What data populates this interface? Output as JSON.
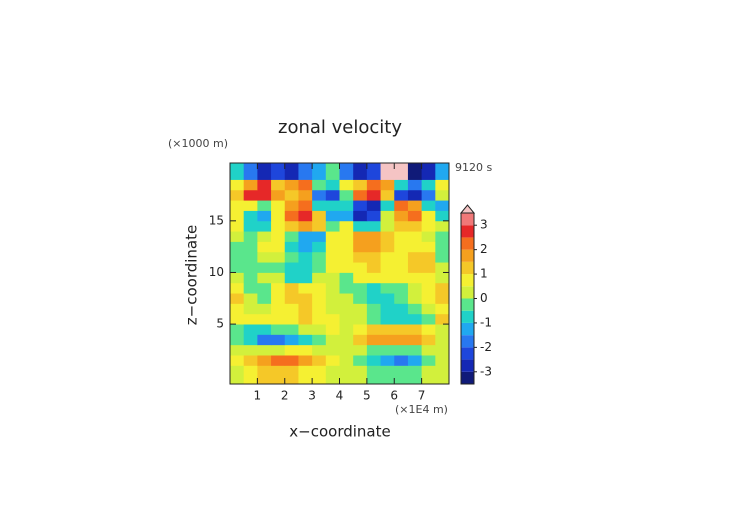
{
  "chart_data": {
    "type": "contour",
    "title": "zonal velocity",
    "x_label": "x−coordinate",
    "y_label": "z−coordinate",
    "x_unit": "(×1E4 m)",
    "y_unit": "(×1000 m)",
    "time_label": "9120 s",
    "xlim": [
      0,
      8
    ],
    "ylim": [
      -0.8,
      20.6
    ],
    "xticks": [
      1,
      2,
      3,
      4,
      5,
      6,
      7
    ],
    "yticks": [
      5,
      10,
      15
    ],
    "x": [
      0.25,
      0.75,
      1.25,
      1.75,
      2.25,
      2.75,
      3.25,
      3.75,
      4.25,
      4.75,
      5.25,
      5.75,
      6.25,
      6.75,
      7.25,
      7.75
    ],
    "y": [
      0.5,
      1.5,
      2.5,
      3.5,
      4.5,
      5.5,
      6.5,
      7.5,
      8.5,
      9.5,
      10.5,
      11.5,
      12.5,
      13.5,
      14.5,
      15.5,
      16.5,
      17.5,
      18.5,
      19.5
    ],
    "z": [
      [
        0.3,
        0.5,
        1,
        1,
        1,
        0.8,
        0.5,
        0.3,
        0.3,
        0,
        -0.3,
        -0.5,
        -0.5,
        -0.3,
        0,
        0.3
      ],
      [
        0.5,
        1,
        1.5,
        2,
        2,
        1.5,
        1,
        0.5,
        0.3,
        -0.5,
        -1,
        -1.5,
        -1.8,
        -1.5,
        -0.5,
        0.3
      ],
      [
        0.3,
        0.3,
        0.3,
        0.3,
        0.5,
        0.5,
        0.3,
        0.3,
        0.3,
        0,
        -0.5,
        -0.5,
        -0.5,
        -0.3,
        0,
        0.3
      ],
      [
        -0.5,
        -1,
        -1.8,
        -2,
        -1.5,
        -1,
        -0.5,
        0.3,
        0.3,
        1,
        1.5,
        1.5,
        1.5,
        1.5,
        1,
        0.3
      ],
      [
        -0.5,
        -0.8,
        -0.8,
        -0.5,
        -0.3,
        0,
        0.3,
        0.5,
        0.3,
        0.5,
        1,
        1,
        1,
        1,
        0.5,
        0
      ],
      [
        0.5,
        0.5,
        0.5,
        0.5,
        0.8,
        1,
        0.8,
        0.5,
        0.2,
        0,
        -0.5,
        -0.8,
        -1,
        -0.8,
        -0.3,
        1
      ],
      [
        0.5,
        0.3,
        0.2,
        0.5,
        0.8,
        1,
        0.5,
        0.3,
        0.3,
        0,
        -0.5,
        -0.8,
        -0.8,
        -0.5,
        0,
        0.5
      ],
      [
        1.2,
        0,
        -0.5,
        0.5,
        1,
        1.2,
        0.5,
        0.2,
        0,
        -0.5,
        -1,
        -1,
        -0.5,
        0,
        0.5,
        1.2
      ],
      [
        0.8,
        -0.5,
        -0.5,
        0.5,
        1,
        0.5,
        0.5,
        0,
        -0.5,
        -0.5,
        -0.8,
        -0.5,
        -0.3,
        0.3,
        0.5,
        1
      ],
      [
        0,
        -0.5,
        0,
        0,
        -0.8,
        -0.8,
        0,
        0,
        -0.5,
        0.5,
        0.8,
        0.8,
        0.8,
        0.5,
        0.5,
        0.2
      ],
      [
        -0.5,
        -0.5,
        -0.3,
        -0.5,
        -0.8,
        -0.8,
        -0.3,
        0.5,
        0.5,
        0.8,
        1,
        0.8,
        0.8,
        1,
        1,
        0
      ],
      [
        -0.5,
        -0.5,
        0,
        0,
        -0.5,
        -1,
        -0.5,
        0.5,
        0.5,
        1,
        1,
        0.5,
        0.5,
        1,
        1,
        -0.5
      ],
      [
        -0.5,
        -0.5,
        0.5,
        0.5,
        -1,
        -1.5,
        -1,
        0.5,
        0.5,
        1.5,
        1.5,
        1,
        0.5,
        0.5,
        0.5,
        -0.5
      ],
      [
        0,
        -0.5,
        0,
        0.5,
        -0.5,
        -1.5,
        -1.5,
        0.5,
        0.5,
        1.5,
        1.8,
        1,
        0.5,
        0.5,
        0,
        -0.5
      ],
      [
        0.5,
        -1,
        -1,
        0.5,
        1,
        1.5,
        1,
        -0.5,
        0.5,
        -1,
        -1,
        0,
        1,
        1,
        0.5,
        0
      ],
      [
        0.5,
        -1,
        -1.5,
        0.5,
        2,
        2.8,
        1,
        -1.5,
        -1.5,
        -3,
        -2.5,
        0,
        1.5,
        2,
        0.5,
        -1
      ],
      [
        0.5,
        0.5,
        -0.5,
        0.5,
        1.5,
        2,
        -1,
        -1,
        -1,
        -2.5,
        -2.8,
        -1,
        2,
        1.5,
        -1,
        -1.5
      ],
      [
        1,
        2.5,
        2.8,
        1.5,
        1,
        1.5,
        -2,
        -2.5,
        -0.5,
        2,
        2.8,
        1,
        -2.5,
        -3,
        -2,
        0
      ],
      [
        0.5,
        1.5,
        2.5,
        1,
        1.5,
        2,
        -0.5,
        -1,
        0.5,
        1,
        2,
        1.5,
        -1,
        -2,
        -1,
        0.5
      ],
      [
        -1,
        -2,
        -3,
        -2.5,
        -3,
        -2,
        -1.5,
        -0.5,
        -2,
        -3,
        -2.5,
        3.6,
        3.6,
        -3.2,
        -3,
        -1.5
      ]
    ],
    "levels": [
      -3.5,
      -3,
      -2.5,
      -2,
      -1.5,
      -1,
      -0.5,
      0,
      0.5,
      1,
      1.5,
      2,
      2.5,
      3,
      3.5
    ],
    "colors": [
      "#101a78",
      "#1428b4",
      "#1e46dc",
      "#2878f0",
      "#20a8f0",
      "#20d2c8",
      "#5ae68c",
      "#d2f03c",
      "#f5f032",
      "#f5c828",
      "#f5a01e",
      "#f56e1e",
      "#e62828",
      "#f07878"
    ],
    "over_color": "#f5c4c4",
    "cbticks": [
      -3,
      -2,
      -1,
      0,
      1,
      2,
      3
    ]
  }
}
